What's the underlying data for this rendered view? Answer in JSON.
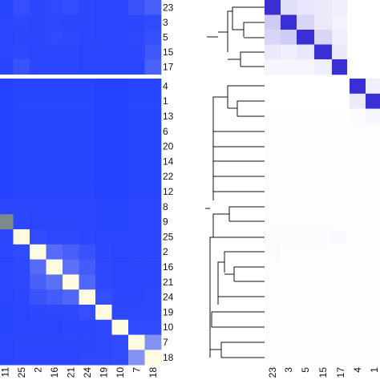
{
  "chart_data": [
    {
      "type": "heatmap",
      "panel": "left",
      "split_after_row": 5,
      "row_labels": [
        "23",
        "3",
        "5",
        "15",
        "17",
        "4",
        "1",
        "13",
        "6",
        "20",
        "14",
        "22",
        "12",
        "8",
        "9",
        "25",
        "2",
        "16",
        "21",
        "24",
        "19",
        "10",
        "7",
        "18"
      ],
      "col_labels": [
        "11",
        "25",
        "2",
        "16",
        "21",
        "24",
        "19",
        "10",
        "7",
        "18"
      ],
      "color_low": "#1e3cff",
      "color_high": "#fffbe0",
      "values": [
        [
          0.04,
          0.1,
          0.06,
          0.08,
          0.09,
          0.06,
          0.05,
          0.05,
          0.12,
          0.18
        ],
        [
          0.05,
          0.07,
          0.06,
          0.07,
          0.06,
          0.06,
          0.05,
          0.05,
          0.06,
          0.08
        ],
        [
          0.05,
          0.06,
          0.06,
          0.08,
          0.07,
          0.06,
          0.05,
          0.05,
          0.07,
          0.1
        ],
        [
          0.05,
          0.07,
          0.06,
          0.06,
          0.06,
          0.05,
          0.05,
          0.05,
          0.06,
          0.14
        ],
        [
          0.04,
          0.12,
          0.06,
          0.06,
          0.06,
          0.05,
          0.05,
          0.05,
          0.05,
          0.2
        ],
        [
          0.03,
          0.04,
          0.04,
          0.04,
          0.04,
          0.04,
          0.03,
          0.03,
          0.04,
          0.04
        ],
        [
          0.03,
          0.04,
          0.04,
          0.04,
          0.04,
          0.04,
          0.03,
          0.03,
          0.04,
          0.04
        ],
        [
          0.03,
          0.04,
          0.04,
          0.04,
          0.04,
          0.04,
          0.03,
          0.03,
          0.04,
          0.04
        ],
        [
          0.03,
          0.04,
          0.04,
          0.04,
          0.04,
          0.04,
          0.03,
          0.03,
          0.04,
          0.04
        ],
        [
          0.03,
          0.04,
          0.04,
          0.04,
          0.04,
          0.04,
          0.03,
          0.03,
          0.04,
          0.04
        ],
        [
          0.03,
          0.04,
          0.04,
          0.04,
          0.04,
          0.04,
          0.03,
          0.03,
          0.04,
          0.04
        ],
        [
          0.03,
          0.04,
          0.04,
          0.04,
          0.04,
          0.04,
          0.03,
          0.03,
          0.04,
          0.04
        ],
        [
          0.03,
          0.04,
          0.04,
          0.04,
          0.04,
          0.04,
          0.03,
          0.03,
          0.04,
          0.04
        ],
        [
          0.05,
          0.05,
          0.05,
          0.05,
          0.05,
          0.05,
          0.04,
          0.04,
          0.05,
          0.05
        ],
        [
          0.6,
          0.06,
          0.05,
          0.05,
          0.05,
          0.05,
          0.04,
          0.04,
          0.05,
          0.05
        ],
        [
          0.05,
          1.0,
          0.08,
          0.07,
          0.07,
          0.06,
          0.05,
          0.05,
          0.06,
          0.06
        ],
        [
          0.05,
          0.08,
          1.0,
          0.25,
          0.18,
          0.12,
          0.06,
          0.05,
          0.06,
          0.06
        ],
        [
          0.05,
          0.07,
          0.25,
          1.0,
          0.28,
          0.16,
          0.07,
          0.05,
          0.06,
          0.06
        ],
        [
          0.05,
          0.07,
          0.18,
          0.28,
          1.0,
          0.22,
          0.07,
          0.06,
          0.06,
          0.06
        ],
        [
          0.05,
          0.06,
          0.12,
          0.16,
          0.22,
          1.0,
          0.1,
          0.06,
          0.06,
          0.07
        ],
        [
          0.04,
          0.05,
          0.06,
          0.07,
          0.07,
          0.1,
          1.0,
          0.07,
          0.07,
          0.07
        ],
        [
          0.04,
          0.05,
          0.05,
          0.05,
          0.06,
          0.06,
          0.07,
          1.0,
          0.08,
          0.08
        ],
        [
          0.05,
          0.06,
          0.06,
          0.06,
          0.06,
          0.06,
          0.07,
          0.08,
          1.0,
          0.45
        ],
        [
          0.05,
          0.06,
          0.06,
          0.06,
          0.06,
          0.07,
          0.07,
          0.08,
          0.45,
          1.0
        ]
      ]
    },
    {
      "type": "heatmap",
      "panel": "right",
      "row_labels": [
        "23",
        "3",
        "5",
        "15",
        "17",
        "4",
        "1",
        "13",
        "6",
        "20",
        "14",
        "22",
        "12",
        "8",
        "9",
        "25",
        "2",
        "16",
        "21",
        "24",
        "19",
        "10",
        "7",
        "18"
      ],
      "col_labels": [
        "23",
        "3",
        "5",
        "15",
        "17",
        "4",
        "1"
      ],
      "color_low": "#ffffff",
      "color_high": "#3a2fd4",
      "values": [
        [
          1.0,
          0.15,
          0.12,
          0.1,
          0.08,
          0.0,
          0.0
        ],
        [
          0.25,
          1.0,
          0.2,
          0.1,
          0.06,
          0.0,
          0.0
        ],
        [
          0.2,
          0.25,
          1.0,
          0.2,
          0.08,
          0.0,
          0.0
        ],
        [
          0.1,
          0.08,
          0.12,
          1.0,
          0.1,
          0.0,
          0.0
        ],
        [
          0.05,
          0.05,
          0.05,
          0.08,
          1.0,
          0.0,
          0.0
        ],
        [
          0.0,
          0.0,
          0.0,
          0.0,
          0.0,
          1.0,
          0.08
        ],
        [
          0.0,
          0.0,
          0.0,
          0.0,
          0.0,
          0.1,
          1.0
        ],
        [
          0.01,
          0.01,
          0.01,
          0.01,
          0.01,
          0.02,
          0.05
        ],
        [
          0.01,
          0.01,
          0.01,
          0.01,
          0.01,
          0.01,
          0.01
        ],
        [
          0.01,
          0.01,
          0.01,
          0.01,
          0.01,
          0.01,
          0.01
        ],
        [
          0.01,
          0.01,
          0.01,
          0.01,
          0.01,
          0.01,
          0.01
        ],
        [
          0.01,
          0.01,
          0.01,
          0.01,
          0.01,
          0.01,
          0.01
        ],
        [
          0.01,
          0.01,
          0.01,
          0.01,
          0.01,
          0.01,
          0.01
        ],
        [
          0.01,
          0.01,
          0.01,
          0.01,
          0.01,
          0.01,
          0.01
        ],
        [
          0.01,
          0.01,
          0.01,
          0.01,
          0.01,
          0.01,
          0.01
        ],
        [
          0.02,
          0.02,
          0.02,
          0.02,
          0.03,
          0.01,
          0.01
        ],
        [
          0.02,
          0.01,
          0.01,
          0.01,
          0.01,
          0.01,
          0.01
        ],
        [
          0.01,
          0.01,
          0.01,
          0.01,
          0.01,
          0.01,
          0.01
        ],
        [
          0.01,
          0.01,
          0.01,
          0.01,
          0.01,
          0.01,
          0.01
        ],
        [
          0.01,
          0.01,
          0.01,
          0.01,
          0.01,
          0.01,
          0.01
        ],
        [
          0.01,
          0.01,
          0.01,
          0.01,
          0.01,
          0.01,
          0.01
        ],
        [
          0.01,
          0.01,
          0.01,
          0.01,
          0.01,
          0.01,
          0.01
        ],
        [
          0.01,
          0.01,
          0.01,
          0.01,
          0.01,
          0.01,
          0.01
        ],
        [
          0.01,
          0.01,
          0.01,
          0.01,
          0.01,
          0.01,
          0.01
        ]
      ]
    }
  ]
}
